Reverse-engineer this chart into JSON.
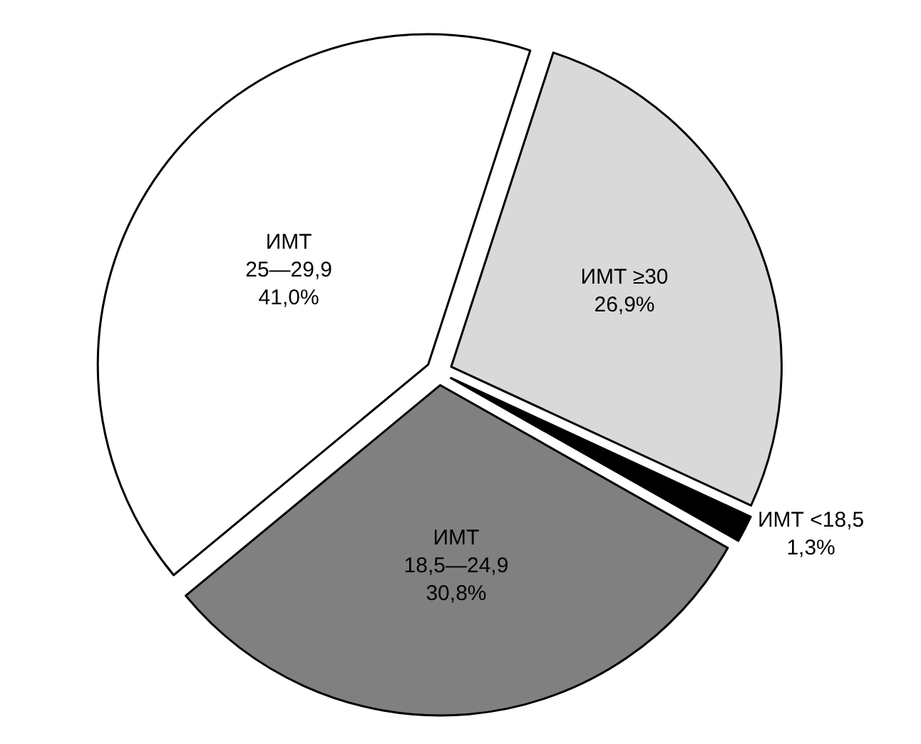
{
  "chart_data": {
    "type": "pie",
    "categories": [
      "ИМТ ≥30",
      "ИМТ <18,5",
      "ИМТ\n18,5—24,9",
      "ИМТ\n25—29,9"
    ],
    "values": [
      26.9,
      1.3,
      30.8,
      41.0
    ],
    "value_labels": [
      "26,9%",
      "1,3%",
      "30,8%",
      "41,0%"
    ],
    "colors": [
      "#d9d9d9",
      "#000000",
      "#808080",
      "#ffffff"
    ],
    "legend": false
  }
}
